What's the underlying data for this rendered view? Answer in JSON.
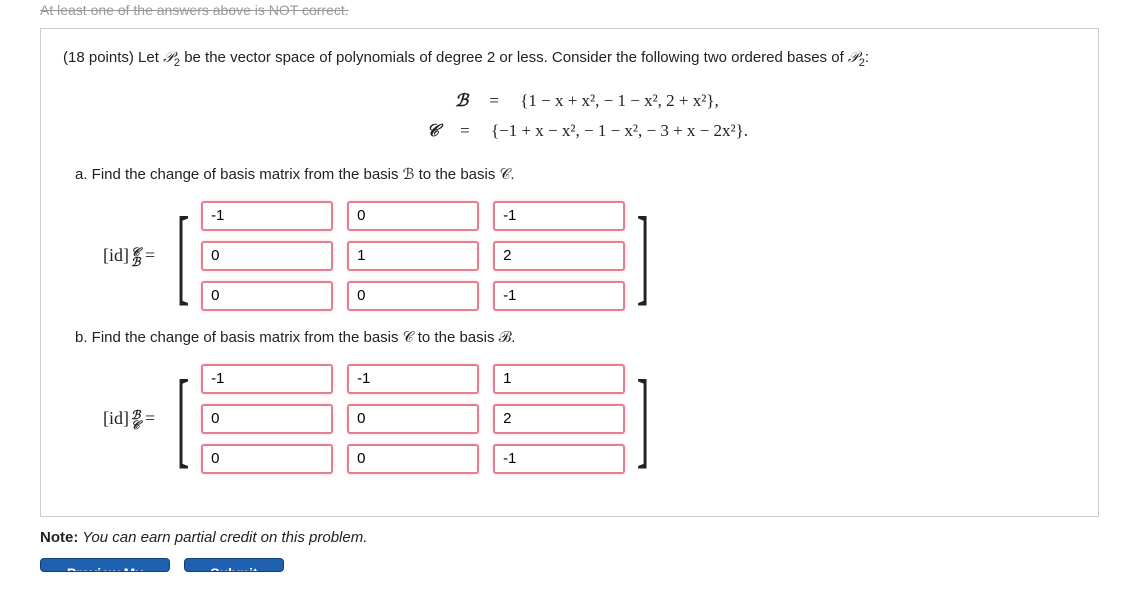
{
  "header_strike": "At least one of the answers above is NOT correct.",
  "problem": {
    "points": "(18 points)",
    "intro_a": "Let ",
    "space": "𝒫",
    "space_sub": "2",
    "intro_b": " be the vector space of polynomials of degree 2 or less. Consider the following two ordered bases of ",
    "intro_c": ":",
    "eq": {
      "B_label": "ℬ",
      "B_rhs": "{1 − x + x²,  − 1 − x²,  2 + x²},",
      "C_label": "𝒞",
      "C_rhs": "{−1 + x − x²,  − 1 − x²,  − 3 + x − 2x²}.",
      "eq_sign": "="
    },
    "part_a": "a. Find the change of basis matrix from the basis ℬ to the basis 𝒞.",
    "part_b": "b. Find the change of basis matrix from the basis 𝒞 to the basis ℬ.",
    "matrix_a": {
      "label_base": "[id]",
      "sup": "𝒞",
      "sub": "ℬ",
      "eq": "=",
      "cells": [
        "-1",
        "0",
        "-1",
        "0",
        "1",
        "2",
        "0",
        "0",
        "-1"
      ]
    },
    "matrix_b": {
      "label_base": "[id]",
      "sup": "ℬ",
      "sub": "𝒞",
      "eq": "=",
      "cells": [
        "-1",
        "-1",
        "1",
        "0",
        "0",
        "2",
        "0",
        "0",
        "-1"
      ]
    }
  },
  "note_bold": "Note:",
  "note_italic": " You can earn partial credit on this problem.",
  "buttons": {
    "preview": "Preview My Answers",
    "submit": "Submit Answers"
  },
  "style": {
    "input_border": "#e08090",
    "button_bg": "#2060b0"
  }
}
